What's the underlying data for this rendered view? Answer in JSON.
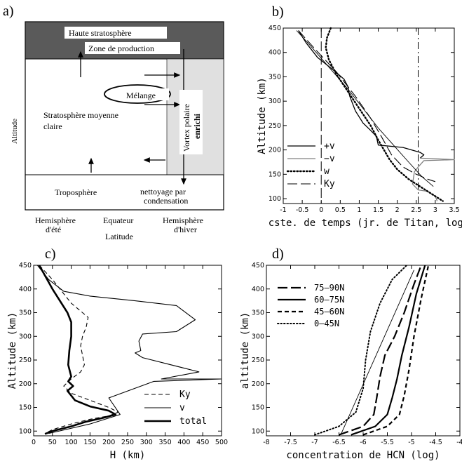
{
  "panels": {
    "a": {
      "tag": "a)",
      "haute": "Haute stratosphère",
      "zone": "Zone de production",
      "melange": "Mélange",
      "strato1": "Stratosphère moyenne",
      "strato2": "claire",
      "vortex1": "Vortex polaire",
      "vortex2": "enrichi",
      "tropo": "Troposphère",
      "nett1": "nettoyage par",
      "nett2": "condensation",
      "hem_ete1": "Hemisphère",
      "hem_ete2": "d'été",
      "equateur": "Equateur",
      "hem_hiver1": "Hemisphère",
      "hem_hiver2": "d'hiver",
      "xlabel": "Latitude",
      "ylabel": "Altitude"
    },
    "b": {
      "tag": "b)"
    },
    "c": {
      "tag": "c)"
    },
    "d": {
      "tag": "d)"
    }
  },
  "chart_data": [
    {
      "id": "b",
      "type": "line",
      "xlabel": "cste. de temps (jr. de Titan, log)",
      "ylabel": "Altitude (km)",
      "xlim": [
        -1,
        3.5
      ],
      "ylim": [
        90,
        450
      ],
      "xticks": [
        -1,
        -0.5,
        0,
        0.5,
        1,
        1.5,
        2,
        2.5,
        3,
        3.5
      ],
      "xticklabels": [
        "-1",
        "-0.5",
        "0",
        "0.5",
        "1",
        "1.5",
        "2",
        "2.5",
        "3",
        "3.5"
      ],
      "yticks": [
        100,
        150,
        200,
        250,
        300,
        350,
        400,
        450
      ],
      "legend_position": "bottom-left",
      "series": [
        {
          "name": "+v",
          "style": "solid",
          "color": "#000000",
          "width": 1.3,
          "x": [
            -0.6,
            -0.4,
            -0.1,
            0.3,
            0.6,
            0.7,
            0.75,
            0.9,
            1.1,
            1.3,
            1.45,
            1.5,
            2.15,
            2.6,
            2.7,
            2.6
          ],
          "y": [
            445,
            420,
            390,
            365,
            345,
            330,
            310,
            280,
            255,
            240,
            228,
            210,
            205,
            195,
            190,
            183
          ]
        },
        {
          "name": "−v",
          "style": "solid",
          "color": "#808080",
          "width": 1.3,
          "x": [
            2.6,
            3.0,
            3.5,
            2.7,
            2.55,
            2.45,
            2.4,
            2.55,
            2.8,
            3.0,
            3.05
          ],
          "y": [
            183,
            182,
            180,
            178,
            165,
            155,
            130,
            118,
            115,
            105,
            95
          ]
        },
        {
          "name": "",
          "style": "solid",
          "color": "#000000",
          "width": 0.9,
          "x": [
            -0.65,
            -0.3,
            0.2,
            0.7,
            1.1,
            1.5,
            1.9,
            2.3,
            2.65,
            2.95
          ],
          "y": [
            445,
            415,
            370,
            325,
            285,
            245,
            210,
            175,
            145,
            125
          ]
        },
        {
          "name": "w",
          "style": "dotted",
          "color": "#000000",
          "width": 2.4,
          "x": [
            0.25,
            0.15,
            0.12,
            0.2,
            0.4,
            0.7,
            1.0,
            1.3,
            1.5,
            1.65,
            1.8,
            2.0,
            2.3,
            2.7,
            3.0,
            3.2
          ],
          "y": [
            450,
            430,
            410,
            385,
            355,
            320,
            285,
            250,
            220,
            200,
            180,
            160,
            140,
            120,
            105,
            95
          ]
        },
        {
          "name": "Ky",
          "style": "longdash",
          "color": "#000000",
          "width": 1.1,
          "x": [
            -0.6,
            -0.2,
            0.4,
            0.9,
            1.3,
            1.6,
            1.85,
            2.15,
            2.5,
            2.8,
            3.0
          ],
          "y": [
            445,
            410,
            360,
            310,
            265,
            225,
            190,
            165,
            150,
            140,
            135
          ]
        }
      ],
      "vlines": [
        {
          "x": 0,
          "style": "longdash"
        },
        {
          "x": 2.55,
          "style": "dashdot"
        }
      ]
    },
    {
      "id": "c",
      "type": "line",
      "xlabel": "H (km)",
      "ylabel": "Altitude (km)",
      "xlim": [
        0,
        500
      ],
      "ylim": [
        90,
        450
      ],
      "xticks": [
        0,
        50,
        100,
        150,
        200,
        250,
        300,
        350,
        400,
        450,
        500
      ],
      "yticks": [
        100,
        150,
        200,
        250,
        300,
        350,
        400,
        450
      ],
      "legend_position": "bottom-right",
      "series": [
        {
          "name": "Ky",
          "style": "dashed",
          "color": "#000000",
          "width": 1.1,
          "x": [
            15,
            50,
            100,
            130,
            145,
            140,
            130,
            125,
            130,
            135,
            125,
            100,
            80,
            100,
            150,
            200,
            225,
            200,
            150,
            100,
            50,
            30
          ],
          "y": [
            450,
            420,
            370,
            350,
            340,
            320,
            300,
            280,
            260,
            240,
            225,
            210,
            195,
            180,
            165,
            150,
            140,
            132,
            125,
            115,
            103,
            95
          ]
        },
        {
          "name": "v",
          "style": "solid",
          "color": "#000000",
          "width": 1.1,
          "x": [
            10,
            40,
            80,
            150,
            270,
            380,
            430,
            380,
            290,
            280,
            285,
            270,
            290,
            440,
            340,
            500,
            320,
            200,
            230,
            150,
            40
          ],
          "y": [
            450,
            420,
            395,
            385,
            375,
            365,
            335,
            310,
            305,
            290,
            270,
            265,
            255,
            225,
            210,
            210,
            205,
            170,
            135,
            115,
            95
          ]
        },
        {
          "name": "total",
          "style": "solid",
          "color": "#000000",
          "width": 2.6,
          "x": [
            15,
            50,
            90,
            100,
            100,
            95,
            92,
            100,
            92,
            105,
            90,
            110,
            150,
            200,
            218,
            185,
            140,
            100,
            50,
            30
          ],
          "y": [
            450,
            400,
            350,
            330,
            300,
            270,
            240,
            215,
            205,
            195,
            185,
            165,
            152,
            143,
            135,
            128,
            120,
            110,
            100,
            94
          ]
        }
      ]
    },
    {
      "id": "d",
      "type": "line",
      "xlabel": "concentration de HCN (log)",
      "ylabel": "altitude (km)",
      "xlim": [
        -8,
        -4
      ],
      "ylim": [
        90,
        450
      ],
      "xticks": [
        -8,
        -7.5,
        -7,
        -6.5,
        -6,
        -5.5,
        -5,
        -4.5,
        -4
      ],
      "yticks": [
        100,
        150,
        200,
        250,
        300,
        350,
        400,
        450
      ],
      "legend_position": "top-left",
      "series": [
        {
          "name": "75–90N",
          "style": "longdash",
          "color": "#000000",
          "width": 2.2,
          "x": [
            -6.5,
            -6.0,
            -5.78,
            -5.72,
            -5.65,
            -5.55,
            -5.35,
            -5.15,
            -4.95,
            -4.8
          ],
          "y": [
            92,
            110,
            135,
            170,
            215,
            260,
            300,
            350,
            410,
            450
          ]
        },
        {
          "name": "60–75N",
          "style": "solid",
          "color": "#000000",
          "width": 2.2,
          "x": [
            -6.25,
            -5.75,
            -5.5,
            -5.4,
            -5.3,
            -5.2,
            -5.05,
            -4.9,
            -4.72
          ],
          "y": [
            92,
            110,
            135,
            170,
            210,
            260,
            320,
            390,
            450
          ]
        },
        {
          "name": "45–60N",
          "style": "dashed",
          "color": "#000000",
          "width": 2.2,
          "x": [
            -6.0,
            -5.5,
            -5.25,
            -5.15,
            -5.05,
            -4.95,
            -4.8,
            -4.65
          ],
          "y": [
            92,
            110,
            135,
            175,
            230,
            300,
            380,
            450
          ]
        },
        {
          "name": "0–45N",
          "style": "dotted",
          "color": "#000000",
          "width": 2.0,
          "x": [
            -7.0,
            -6.5,
            -6.15,
            -6.0,
            -5.95,
            -5.85,
            -5.65,
            -5.4,
            -5.1
          ],
          "y": [
            92,
            110,
            140,
            190,
            250,
            310,
            370,
            420,
            450
          ]
        },
        {
          "name": "",
          "style": "solid",
          "color": "#000000",
          "width": 0.9,
          "x": [
            -6.45,
            -4.95
          ],
          "y": [
            95,
            440
          ]
        }
      ]
    }
  ]
}
